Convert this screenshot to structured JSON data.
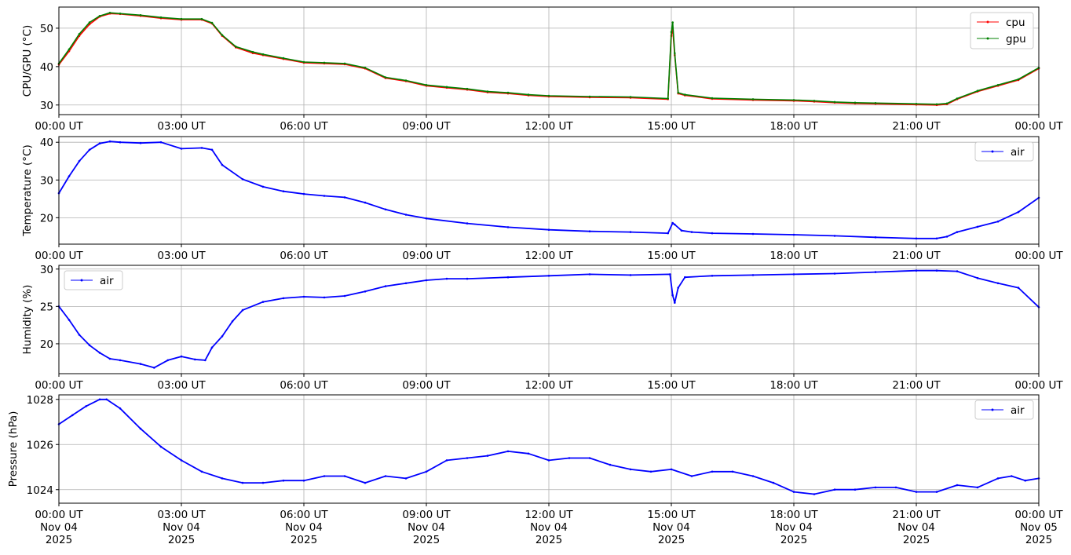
{
  "chart_data": [
    {
      "type": "line",
      "ylabel": "CPU/GPU (°C)",
      "ylim": [
        27.5,
        55.5
      ],
      "yticks": [
        30,
        40,
        50
      ],
      "xlim": [
        "2025-11-04T00:00",
        "2025-11-05T00:00"
      ],
      "xticks": [
        "00:00 UT",
        "03:00 UT",
        "06:00 UT",
        "09:00 UT",
        "12:00 UT",
        "15:00 UT",
        "18:00 UT",
        "21:00 UT",
        "00:00 UT"
      ],
      "grid": true,
      "legend": "top-right",
      "series": [
        {
          "name": "cpu",
          "color": "#ff0000",
          "x": [
            "00:00",
            "00:15",
            "00:30",
            "00:45",
            "01:00",
            "01:15",
            "01:30",
            "02:00",
            "02:30",
            "03:00",
            "03:30",
            "03:45",
            "04:00",
            "04:20",
            "04:45",
            "05:00",
            "05:30",
            "06:00",
            "06:30",
            "07:00",
            "07:30",
            "08:00",
            "08:30",
            "09:00",
            "09:30",
            "10:00",
            "10:30",
            "11:00",
            "11:30",
            "12:00",
            "13:00",
            "14:00",
            "14:55",
            "15:00",
            "15:02",
            "15:05",
            "15:10",
            "15:20",
            "16:00",
            "17:00",
            "18:00",
            "18:30",
            "19:00",
            "19:30",
            "20:00",
            "21:00",
            "21:30",
            "21:45",
            "22:00",
            "22:30",
            "23:00",
            "23:30",
            "00:00"
          ],
          "values": [
            40.5,
            44,
            48,
            51,
            53,
            53.8,
            53.7,
            53.2,
            52.6,
            52.2,
            52.2,
            51.2,
            48,
            45,
            43.5,
            43,
            42,
            41,
            40.8,
            40.6,
            39.5,
            37,
            36.2,
            35,
            34.5,
            34,
            33.3,
            33,
            32.5,
            32.2,
            32,
            31.9,
            31.5,
            48,
            50,
            43,
            33,
            32.5,
            31.6,
            31.3,
            31.1,
            30.9,
            30.6,
            30.4,
            30.3,
            30.1,
            30,
            30.2,
            31.5,
            33.5,
            35,
            36.5,
            39.5
          ]
        },
        {
          "name": "gpu",
          "color": "#008000",
          "x": [
            "00:00",
            "00:15",
            "00:30",
            "00:45",
            "01:00",
            "01:15",
            "01:30",
            "02:00",
            "02:30",
            "03:00",
            "03:30",
            "03:45",
            "04:00",
            "04:20",
            "04:45",
            "05:00",
            "05:30",
            "06:00",
            "06:30",
            "07:00",
            "07:30",
            "08:00",
            "08:30",
            "09:00",
            "09:30",
            "10:00",
            "10:30",
            "11:00",
            "11:30",
            "12:00",
            "13:00",
            "14:00",
            "14:55",
            "15:00",
            "15:02",
            "15:05",
            "15:10",
            "15:20",
            "16:00",
            "17:00",
            "18:00",
            "18:30",
            "19:00",
            "19:30",
            "20:00",
            "21:00",
            "21:30",
            "21:45",
            "22:00",
            "22:30",
            "23:00",
            "23:30",
            "00:00"
          ],
          "values": [
            40.8,
            44.5,
            48.5,
            51.5,
            53.2,
            54,
            53.8,
            53.4,
            52.8,
            52.4,
            52.4,
            51.4,
            48.2,
            45.2,
            43.8,
            43.2,
            42.2,
            41.2,
            41,
            40.8,
            39.7,
            37.2,
            36.4,
            35.2,
            34.7,
            34.2,
            33.5,
            33.2,
            32.7,
            32.4,
            32.2,
            32.1,
            31.7,
            49,
            51.5,
            43.5,
            33.2,
            32.7,
            31.8,
            31.5,
            31.3,
            31.1,
            30.8,
            30.6,
            30.5,
            30.3,
            30.2,
            30.4,
            31.7,
            33.7,
            35.2,
            36.7,
            39.7
          ]
        }
      ]
    },
    {
      "type": "line",
      "ylabel": "Temperature (°C)",
      "ylim": [
        13,
        41.5
      ],
      "yticks": [
        20,
        30,
        40
      ],
      "xticks": [
        "00:00 UT",
        "03:00 UT",
        "06:00 UT",
        "09:00 UT",
        "12:00 UT",
        "15:00 UT",
        "18:00 UT",
        "21:00 UT",
        "00:00 UT"
      ],
      "grid": true,
      "legend": "top-right",
      "series": [
        {
          "name": "air",
          "color": "#0000ff",
          "x": [
            "00:00",
            "00:15",
            "00:30",
            "00:45",
            "01:00",
            "01:15",
            "01:30",
            "02:00",
            "02:30",
            "03:00",
            "03:30",
            "03:45",
            "04:00",
            "04:30",
            "05:00",
            "05:30",
            "06:00",
            "06:30",
            "07:00",
            "07:30",
            "08:00",
            "08:30",
            "09:00",
            "10:00",
            "11:00",
            "12:00",
            "13:00",
            "14:00",
            "14:55",
            "15:02",
            "15:05",
            "15:15",
            "15:30",
            "16:00",
            "17:00",
            "18:00",
            "19:00",
            "20:00",
            "21:00",
            "21:30",
            "21:45",
            "22:00",
            "22:30",
            "23:00",
            "23:30",
            "00:00"
          ],
          "values": [
            26.5,
            31,
            35,
            38,
            39.7,
            40.2,
            40,
            39.8,
            40,
            38.3,
            38.5,
            38,
            34,
            30.2,
            28.2,
            27,
            26.3,
            25.8,
            25.4,
            24,
            22.2,
            20.8,
            19.8,
            18.5,
            17.5,
            16.8,
            16.4,
            16.2,
            15.9,
            18.6,
            18.2,
            16.6,
            16.2,
            15.9,
            15.7,
            15.5,
            15.2,
            14.8,
            14.5,
            14.5,
            15,
            16.2,
            17.6,
            19,
            21.5,
            25.3
          ]
        }
      ]
    },
    {
      "type": "line",
      "ylabel": "Humidity (%)",
      "ylim": [
        16,
        30.5
      ],
      "yticks": [
        20,
        25,
        30
      ],
      "xticks": [
        "00:00 UT",
        "03:00 UT",
        "06:00 UT",
        "09:00 UT",
        "12:00 UT",
        "15:00 UT",
        "18:00 UT",
        "21:00 UT",
        "00:00 UT"
      ],
      "grid": true,
      "legend": "top-left",
      "series": [
        {
          "name": "air",
          "color": "#0000ff",
          "x": [
            "00:00",
            "00:15",
            "00:30",
            "00:45",
            "01:00",
            "01:15",
            "01:30",
            "02:00",
            "02:20",
            "02:40",
            "03:00",
            "03:20",
            "03:35",
            "03:45",
            "04:00",
            "04:15",
            "04:30",
            "05:00",
            "05:30",
            "06:00",
            "06:30",
            "07:00",
            "07:30",
            "08:00",
            "08:30",
            "09:00",
            "09:30",
            "10:00",
            "11:00",
            "12:00",
            "13:00",
            "14:00",
            "14:58",
            "15:02",
            "15:05",
            "15:10",
            "15:20",
            "16:00",
            "17:00",
            "18:00",
            "19:00",
            "20:00",
            "21:00",
            "21:30",
            "22:00",
            "22:30",
            "23:00",
            "23:30",
            "00:00"
          ],
          "values": [
            25,
            23.2,
            21.2,
            19.8,
            18.8,
            18,
            17.8,
            17.3,
            16.8,
            17.8,
            18.3,
            17.9,
            17.8,
            19.5,
            21,
            23,
            24.5,
            25.6,
            26.1,
            26.3,
            26.2,
            26.4,
            27,
            27.7,
            28.1,
            28.5,
            28.7,
            28.7,
            28.9,
            29.1,
            29.3,
            29.2,
            29.3,
            26.5,
            25.5,
            27.5,
            28.9,
            29.1,
            29.2,
            29.3,
            29.4,
            29.6,
            29.8,
            29.8,
            29.7,
            28.8,
            28.1,
            27.5,
            24.9
          ]
        }
      ]
    },
    {
      "type": "line",
      "ylabel": "Pressure (hPa)",
      "ylim": [
        1023.4,
        1028.2
      ],
      "yticks": [
        1024,
        1026,
        1028
      ],
      "xticks": [
        [
          "00:00 UT",
          "Nov 04",
          "2025"
        ],
        [
          "03:00 UT",
          "Nov 04",
          "2025"
        ],
        [
          "06:00 UT",
          "Nov 04",
          "2025"
        ],
        [
          "09:00 UT",
          "Nov 04",
          "2025"
        ],
        [
          "12:00 UT",
          "Nov 04",
          "2025"
        ],
        [
          "15:00 UT",
          "Nov 04",
          "2025"
        ],
        [
          "18:00 UT",
          "Nov 04",
          "2025"
        ],
        [
          "21:00 UT",
          "Nov 04",
          "2025"
        ],
        [
          "00:00 UT",
          "Nov 05",
          "2025"
        ]
      ],
      "grid": true,
      "legend": "top-right",
      "series": [
        {
          "name": "air",
          "color": "#0000ff",
          "x": [
            "00:00",
            "00:20",
            "00:40",
            "01:00",
            "01:10",
            "01:30",
            "02:00",
            "02:30",
            "03:00",
            "03:30",
            "04:00",
            "04:30",
            "05:00",
            "05:30",
            "06:00",
            "06:30",
            "07:00",
            "07:30",
            "08:00",
            "08:30",
            "09:00",
            "09:30",
            "10:00",
            "10:30",
            "11:00",
            "11:30",
            "12:00",
            "12:30",
            "13:00",
            "13:30",
            "14:00",
            "14:30",
            "15:00",
            "15:30",
            "16:00",
            "16:30",
            "17:00",
            "17:30",
            "18:00",
            "18:30",
            "19:00",
            "19:30",
            "20:00",
            "20:30",
            "21:00",
            "21:30",
            "22:00",
            "22:30",
            "23:00",
            "23:20",
            "23:40",
            "00:00"
          ],
          "values": [
            1026.9,
            1027.3,
            1027.7,
            1028,
            1028,
            1027.6,
            1026.7,
            1025.9,
            1025.3,
            1024.8,
            1024.5,
            1024.3,
            1024.3,
            1024.4,
            1024.4,
            1024.6,
            1024.6,
            1024.3,
            1024.6,
            1024.5,
            1024.8,
            1025.3,
            1025.4,
            1025.5,
            1025.7,
            1025.6,
            1025.3,
            1025.4,
            1025.4,
            1025.1,
            1024.9,
            1024.8,
            1024.9,
            1024.6,
            1024.8,
            1024.8,
            1024.6,
            1024.3,
            1023.9,
            1023.8,
            1024,
            1024,
            1024.1,
            1024.1,
            1023.9,
            1023.9,
            1024.2,
            1024.1,
            1024.5,
            1024.6,
            1024.4,
            1024.5
          ]
        }
      ]
    }
  ]
}
